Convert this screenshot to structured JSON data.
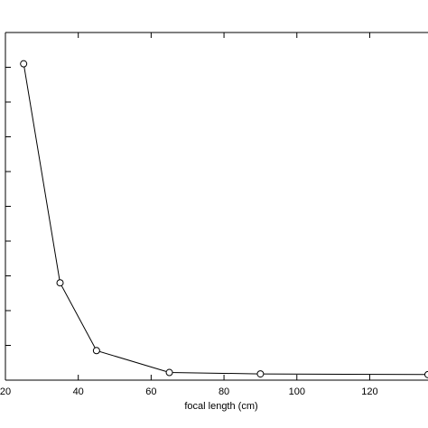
{
  "chart_data": {
    "type": "line",
    "title": "",
    "xlabel": "focal length  (cm)",
    "ylabel": "",
    "xlim": [
      20,
      136
    ],
    "ylim": [
      0,
      100
    ],
    "x_ticks": [
      20,
      40,
      60,
      80,
      100,
      120
    ],
    "x_tick_labels": [
      "20",
      "40",
      "60",
      "80",
      "100",
      "120"
    ],
    "y_ticks": [
      10,
      20,
      30,
      40,
      50,
      60,
      70,
      80,
      90
    ],
    "grid": false,
    "legend": "none",
    "marker": "open-circle",
    "colors": {
      "line": "#000000",
      "axes": "#000000"
    },
    "series": [
      {
        "x": [
          25,
          35,
          45,
          65,
          90,
          136
        ],
        "y": [
          91,
          28,
          8.5,
          2.2,
          1.8,
          1.6
        ]
      }
    ]
  }
}
